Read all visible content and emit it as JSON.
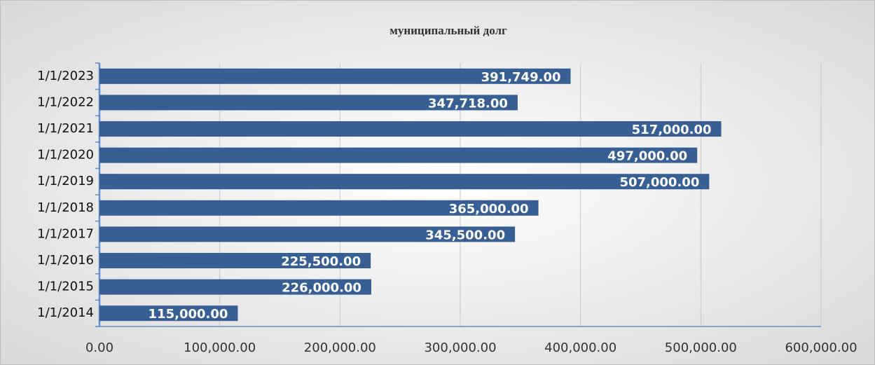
{
  "chart_data": {
    "type": "bar",
    "orientation": "horizontal",
    "title": "муниципальный долг",
    "categories": [
      "1/1/2014",
      "1/1/2015",
      "1/1/2016",
      "1/1/2017",
      "1/1/2018",
      "1/1/2019",
      "1/1/2020",
      "1/1/2021",
      "1/1/2022",
      "1/1/2023"
    ],
    "values": [
      115000,
      226000,
      225500,
      345500,
      365000,
      507000,
      497000,
      517000,
      347718,
      391749
    ],
    "value_labels": [
      "115,000.00",
      "226,000.00",
      "225,500.00",
      "345,500.00",
      "365,000.00",
      "507,000.00",
      "497,000.00",
      "517,000.00",
      "347,718.00",
      "391,749.00"
    ],
    "color": "#375f93",
    "xlim": [
      0,
      600000
    ],
    "xticks": [
      {
        "value": 0,
        "label": "0.00"
      },
      {
        "value": 100000,
        "label": "100,000.00"
      },
      {
        "value": 200000,
        "label": "200,000.00"
      },
      {
        "value": 300000,
        "label": "300,000.00"
      },
      {
        "value": 400000,
        "label": "400,000.00"
      },
      {
        "value": 500000,
        "label": "500,000.00"
      },
      {
        "value": 600000,
        "label": "600,000.00"
      }
    ],
    "grid": true
  }
}
